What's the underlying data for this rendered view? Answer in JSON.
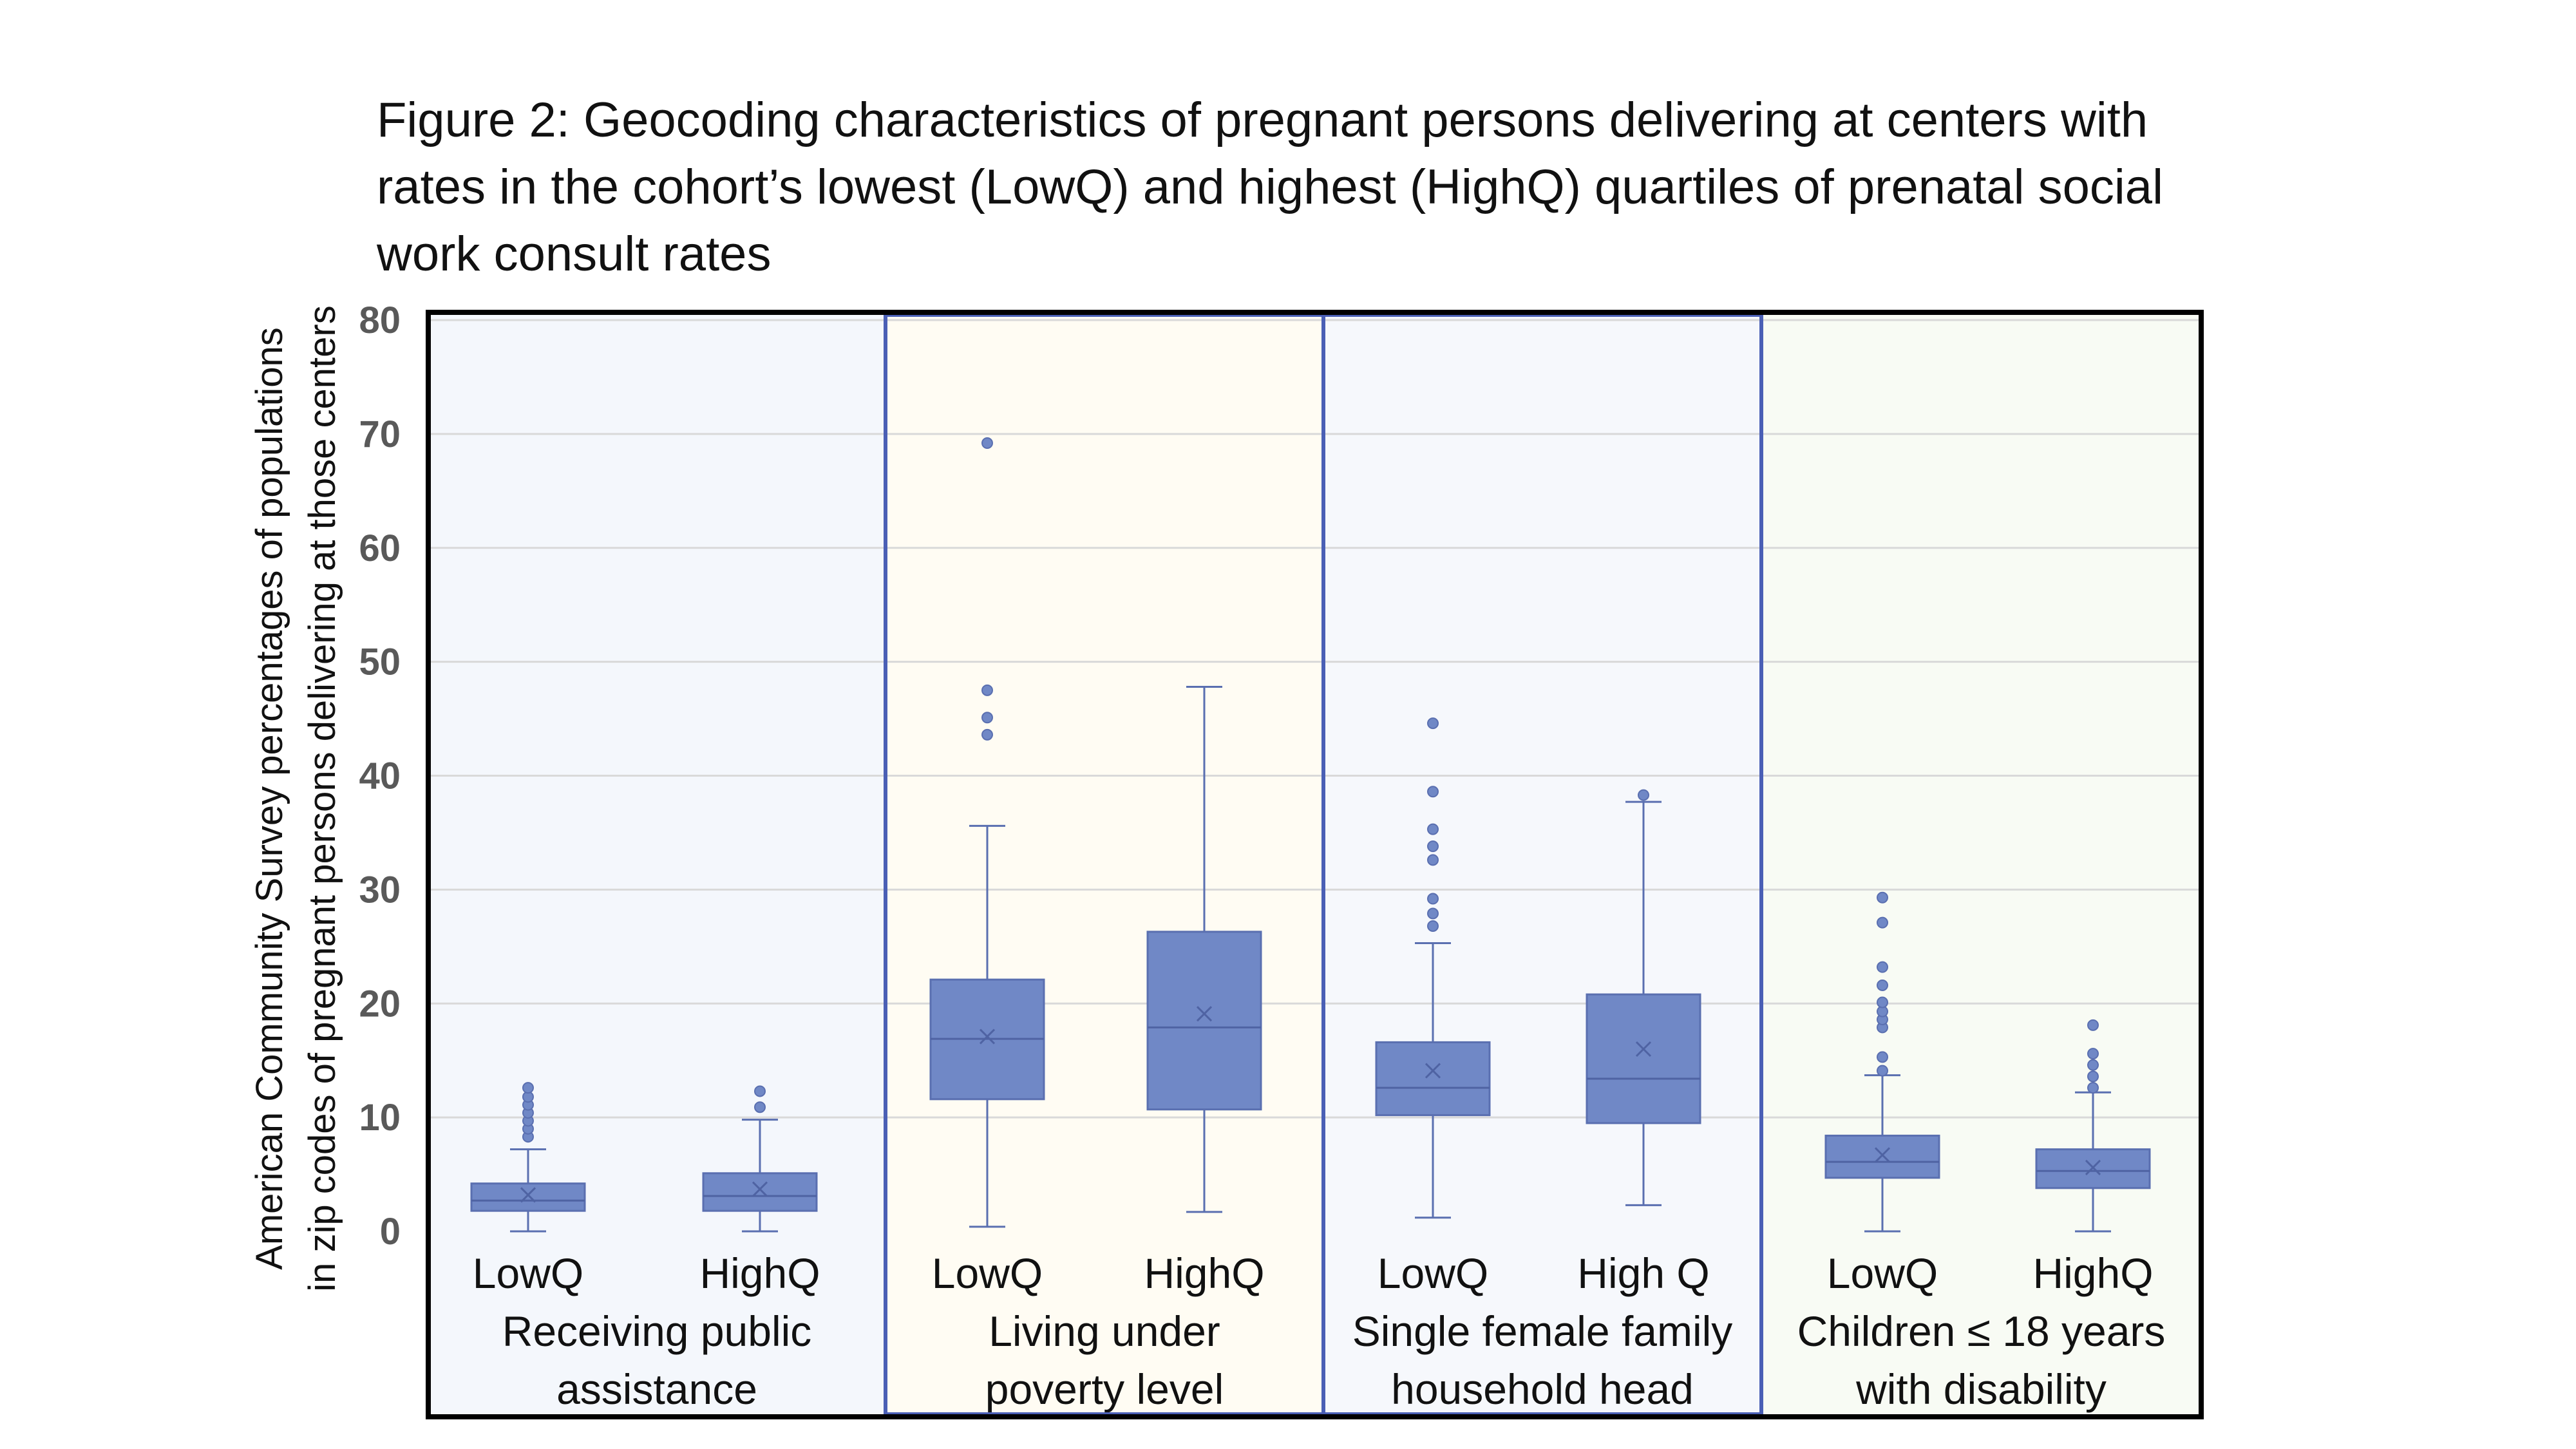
{
  "title": "Figure 2: Geocoding characteristics of pregnant persons delivering at centers with rates in the cohort’s lowest (LowQ) and highest (HighQ) quartiles of prenatal social work consult rates",
  "chart_data": {
    "type": "box",
    "ylabel_lines": [
      "American Community Survey percentages of populations",
      "in zip codes of pregnant persons delivering at those centers"
    ],
    "ylim": [
      0,
      80
    ],
    "yticks": [
      0,
      10,
      20,
      30,
      40,
      50,
      60,
      70,
      80
    ],
    "grid": true,
    "colors": {
      "box_fill": "#7088c6",
      "box_stroke": "#5a6fb0",
      "panel_border": "#4a5fb5",
      "frame": "#000000",
      "gridline": "#d9d9d9",
      "panel_backgrounds": [
        "#f4f7fc",
        "#fffcf3",
        "#f6f8fc",
        "#f8fbf4"
      ]
    },
    "groups": [
      {
        "label_lines": [
          "Receiving public",
          "assistance"
        ],
        "boxes": [
          {
            "category": "LowQ",
            "whisker_low": 0,
            "q1": 1.8,
            "median": 2.7,
            "q3": 4.2,
            "whisker_high": 7.2,
            "mean": 3.2,
            "outliers": [
              8.3,
              9.0,
              9.7,
              10.4,
              11.1,
              11.8,
              12.6
            ]
          },
          {
            "category": "HighQ",
            "whisker_low": 0,
            "q1": 1.8,
            "median": 3.1,
            "q3": 5.1,
            "whisker_high": 9.8,
            "mean": 3.7,
            "outliers": [
              10.9,
              12.3
            ]
          }
        ]
      },
      {
        "label_lines": [
          "Living under",
          "poverty level"
        ],
        "boxes": [
          {
            "category": "LowQ",
            "whisker_low": 0.4,
            "q1": 11.6,
            "median": 16.9,
            "q3": 22.1,
            "whisker_high": 35.6,
            "mean": 17.1,
            "outliers": [
              43.6,
              45.1,
              47.5,
              69.2
            ]
          },
          {
            "category": "HighQ",
            "whisker_low": 1.7,
            "q1": 10.7,
            "median": 17.9,
            "q3": 26.3,
            "whisker_high": 47.8,
            "mean": 19.1,
            "outliers": []
          }
        ]
      },
      {
        "label_lines": [
          "Single female family",
          "household head"
        ],
        "boxes": [
          {
            "category": "LowQ",
            "whisker_low": 1.2,
            "q1": 10.2,
            "median": 12.6,
            "q3": 16.6,
            "whisker_high": 25.3,
            "mean": 14.1,
            "outliers": [
              26.8,
              27.9,
              29.2,
              32.6,
              33.8,
              35.3,
              38.6,
              44.6
            ]
          },
          {
            "category": "High Q",
            "whisker_low": 2.3,
            "q1": 9.5,
            "median": 13.4,
            "q3": 20.8,
            "whisker_high": 37.7,
            "mean": 16.0,
            "outliers": [
              38.3
            ]
          }
        ]
      },
      {
        "label_lines": [
          "Children ≤ 18 years",
          "with disability"
        ],
        "boxes": [
          {
            "category": "LowQ",
            "whisker_low": 0,
            "q1": 4.7,
            "median": 6.1,
            "q3": 8.4,
            "whisker_high": 13.7,
            "mean": 6.7,
            "outliers": [
              14.1,
              15.3,
              17.9,
              18.6,
              19.3,
              20.1,
              21.6,
              23.2,
              27.1,
              29.3
            ]
          },
          {
            "category": "HighQ",
            "whisker_low": 0,
            "q1": 3.8,
            "median": 5.3,
            "q3": 7.2,
            "whisker_high": 12.2,
            "mean": 5.6,
            "outliers": [
              12.6,
              13.6,
              14.6,
              15.6,
              18.1
            ]
          }
        ]
      }
    ]
  }
}
